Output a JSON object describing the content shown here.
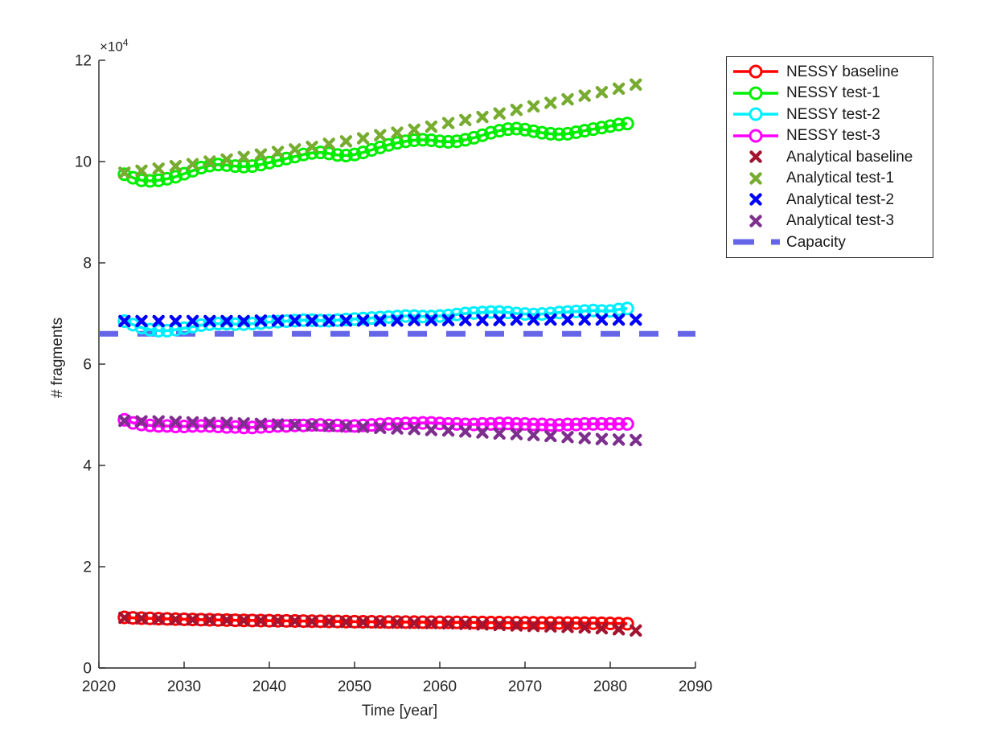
{
  "figure_bg": "#ffffff",
  "axis_color": "#252525",
  "chart_data": {
    "type": "line",
    "title": "",
    "xlabel": "Time [year]",
    "ylabel": "# fragments",
    "y_multiplier_label": "×10",
    "y_multiplier_exponent": "4",
    "value_scale": 10000,
    "xlim": [
      2020,
      2090
    ],
    "ylim_in_1e4": [
      0,
      12
    ],
    "x_ticks": [
      2020,
      2030,
      2040,
      2050,
      2060,
      2070,
      2080,
      2090
    ],
    "y_ticks": [
      0,
      2,
      4,
      6,
      8,
      10,
      12
    ],
    "grid": false,
    "legend_position": "outside top-right",
    "series": [
      {
        "name": "NESSY baseline",
        "style": "line-circle",
        "color": "#FF0000",
        "x": [
          2023,
          2024,
          2025,
          2026,
          2027,
          2028,
          2029,
          2030,
          2031,
          2032,
          2033,
          2034,
          2035,
          2036,
          2037,
          2038,
          2039,
          2040,
          2041,
          2042,
          2043,
          2044,
          2045,
          2046,
          2047,
          2048,
          2049,
          2050,
          2051,
          2052,
          2053,
          2054,
          2055,
          2056,
          2057,
          2058,
          2059,
          2060,
          2061,
          2062,
          2063,
          2064,
          2065,
          2066,
          2067,
          2068,
          2069,
          2070,
          2071,
          2072,
          2073,
          2074,
          2075,
          2076,
          2077,
          2078,
          2079,
          2080,
          2081,
          2082
        ],
        "y": [
          1.0,
          0.99,
          0.985,
          0.98,
          0.975,
          0.97,
          0.966,
          0.962,
          0.958,
          0.955,
          0.952,
          0.949,
          0.946,
          0.943,
          0.94,
          0.938,
          0.936,
          0.934,
          0.932,
          0.93,
          0.928,
          0.926,
          0.924,
          0.922,
          0.92,
          0.918,
          0.916,
          0.915,
          0.913,
          0.912,
          0.91,
          0.909,
          0.908,
          0.907,
          0.906,
          0.905,
          0.904,
          0.903,
          0.902,
          0.901,
          0.9,
          0.899,
          0.898,
          0.897,
          0.896,
          0.895,
          0.894,
          0.893,
          0.892,
          0.891,
          0.89,
          0.889,
          0.888,
          0.887,
          0.886,
          0.884,
          0.882,
          0.88,
          0.877,
          0.874
        ]
      },
      {
        "name": "NESSY test-1",
        "style": "line-circle",
        "color": "#00EE00",
        "x": [
          2023,
          2024,
          2025,
          2026,
          2027,
          2028,
          2029,
          2030,
          2031,
          2032,
          2033,
          2034,
          2035,
          2036,
          2037,
          2038,
          2039,
          2040,
          2041,
          2042,
          2043,
          2044,
          2045,
          2046,
          2047,
          2048,
          2049,
          2050,
          2051,
          2052,
          2053,
          2054,
          2055,
          2056,
          2057,
          2058,
          2059,
          2060,
          2061,
          2062,
          2063,
          2064,
          2065,
          2066,
          2067,
          2068,
          2069,
          2070,
          2071,
          2072,
          2073,
          2074,
          2075,
          2076,
          2077,
          2078,
          2079,
          2080,
          2081,
          2082
        ],
        "y": [
          9.75,
          9.68,
          9.63,
          9.62,
          9.63,
          9.66,
          9.7,
          9.76,
          9.82,
          9.88,
          9.92,
          9.94,
          9.93,
          9.91,
          9.9,
          9.91,
          9.94,
          9.98,
          10.02,
          10.06,
          10.1,
          10.14,
          10.17,
          10.18,
          10.16,
          10.13,
          10.12,
          10.14,
          10.18,
          10.23,
          10.28,
          10.33,
          10.37,
          10.4,
          10.42,
          10.43,
          10.42,
          10.4,
          10.39,
          10.4,
          10.43,
          10.47,
          10.52,
          10.57,
          10.61,
          10.64,
          10.65,
          10.63,
          10.6,
          10.57,
          10.55,
          10.54,
          10.55,
          10.58,
          10.61,
          10.64,
          10.67,
          10.7,
          10.73,
          10.75
        ]
      },
      {
        "name": "NESSY test-2",
        "style": "line-circle",
        "color": "#00EFFF",
        "x": [
          2023,
          2024,
          2025,
          2026,
          2027,
          2028,
          2029,
          2030,
          2031,
          2032,
          2033,
          2034,
          2035,
          2036,
          2037,
          2038,
          2039,
          2040,
          2041,
          2042,
          2043,
          2044,
          2045,
          2046,
          2047,
          2048,
          2049,
          2050,
          2051,
          2052,
          2053,
          2054,
          2055,
          2056,
          2057,
          2058,
          2059,
          2060,
          2061,
          2062,
          2063,
          2064,
          2065,
          2066,
          2067,
          2068,
          2069,
          2070,
          2071,
          2072,
          2073,
          2074,
          2075,
          2076,
          2077,
          2078,
          2079,
          2080,
          2081,
          2082
        ],
        "y": [
          6.85,
          6.78,
          6.72,
          6.68,
          6.66,
          6.66,
          6.68,
          6.71,
          6.74,
          6.77,
          6.79,
          6.8,
          6.8,
          6.79,
          6.79,
          6.8,
          6.81,
          6.83,
          6.84,
          6.85,
          6.86,
          6.87,
          6.87,
          6.86,
          6.86,
          6.87,
          6.88,
          6.89,
          6.9,
          6.91,
          6.92,
          6.93,
          6.94,
          6.95,
          6.95,
          6.94,
          6.94,
          6.95,
          6.96,
          6.98,
          7.0,
          7.01,
          7.02,
          7.03,
          7.03,
          7.02,
          7.0,
          6.99,
          6.98,
          6.99,
          7.0,
          7.02,
          7.03,
          7.04,
          7.05,
          7.06,
          7.05,
          7.05,
          7.08,
          7.1
        ]
      },
      {
        "name": "NESSY test-3",
        "style": "line-circle",
        "color": "#FF00FF",
        "x": [
          2023,
          2024,
          2025,
          2026,
          2027,
          2028,
          2029,
          2030,
          2031,
          2032,
          2033,
          2034,
          2035,
          2036,
          2037,
          2038,
          2039,
          2040,
          2041,
          2042,
          2043,
          2044,
          2045,
          2046,
          2047,
          2048,
          2049,
          2050,
          2051,
          2052,
          2053,
          2054,
          2055,
          2056,
          2057,
          2058,
          2059,
          2060,
          2061,
          2062,
          2063,
          2064,
          2065,
          2066,
          2067,
          2068,
          2069,
          2070,
          2071,
          2072,
          2073,
          2074,
          2075,
          2076,
          2077,
          2078,
          2079,
          2080,
          2081,
          2082
        ],
        "y": [
          4.9,
          4.84,
          4.81,
          4.79,
          4.78,
          4.78,
          4.77,
          4.77,
          4.78,
          4.78,
          4.78,
          4.77,
          4.76,
          4.76,
          4.75,
          4.75,
          4.76,
          4.77,
          4.78,
          4.78,
          4.79,
          4.79,
          4.8,
          4.8,
          4.79,
          4.79,
          4.78,
          4.78,
          4.79,
          4.8,
          4.81,
          4.82,
          4.82,
          4.83,
          4.83,
          4.84,
          4.84,
          4.83,
          4.82,
          4.82,
          4.81,
          4.81,
          4.82,
          4.82,
          4.83,
          4.83,
          4.82,
          4.82,
          4.81,
          4.81,
          4.8,
          4.8,
          4.81,
          4.81,
          4.82,
          4.82,
          4.82,
          4.82,
          4.82,
          4.82
        ]
      },
      {
        "name": "Analytical baseline",
        "style": "x",
        "color": "#A2142F",
        "x": [
          2023,
          2025,
          2027,
          2029,
          2031,
          2033,
          2035,
          2037,
          2039,
          2041,
          2043,
          2045,
          2047,
          2049,
          2051,
          2053,
          2055,
          2057,
          2059,
          2061,
          2063,
          2065,
          2067,
          2069,
          2071,
          2073,
          2075,
          2077,
          2079,
          2081,
          2083
        ],
        "y": [
          0.99,
          0.98,
          0.97,
          0.96,
          0.955,
          0.95,
          0.945,
          0.94,
          0.935,
          0.93,
          0.925,
          0.92,
          0.915,
          0.91,
          0.905,
          0.9,
          0.895,
          0.89,
          0.885,
          0.88,
          0.87,
          0.86,
          0.85,
          0.84,
          0.83,
          0.82,
          0.81,
          0.8,
          0.785,
          0.765,
          0.74
        ]
      },
      {
        "name": "Analytical test-1",
        "style": "x",
        "color": "#77AC30",
        "x": [
          2023,
          2025,
          2027,
          2029,
          2031,
          2033,
          2035,
          2037,
          2039,
          2041,
          2043,
          2045,
          2047,
          2049,
          2051,
          2053,
          2055,
          2057,
          2059,
          2061,
          2063,
          2065,
          2067,
          2069,
          2071,
          2073,
          2075,
          2077,
          2079,
          2081,
          2083
        ],
        "y": [
          9.78,
          9.82,
          9.86,
          9.91,
          9.95,
          10.0,
          10.04,
          10.09,
          10.14,
          10.19,
          10.24,
          10.29,
          10.35,
          10.4,
          10.46,
          10.52,
          10.57,
          10.63,
          10.69,
          10.76,
          10.82,
          10.88,
          10.95,
          11.02,
          11.09,
          11.16,
          11.23,
          11.3,
          11.37,
          11.44,
          11.52
        ]
      },
      {
        "name": "Analytical test-2",
        "style": "x",
        "color": "#0000FF",
        "x": [
          2023,
          2025,
          2027,
          2029,
          2031,
          2033,
          2035,
          2037,
          2039,
          2041,
          2043,
          2045,
          2047,
          2049,
          2051,
          2053,
          2055,
          2057,
          2059,
          2061,
          2063,
          2065,
          2067,
          2069,
          2071,
          2073,
          2075,
          2077,
          2079,
          2081,
          2083
        ],
        "y": [
          6.85,
          6.85,
          6.85,
          6.85,
          6.85,
          6.85,
          6.85,
          6.85,
          6.86,
          6.86,
          6.86,
          6.86,
          6.86,
          6.86,
          6.86,
          6.86,
          6.86,
          6.87,
          6.87,
          6.87,
          6.87,
          6.87,
          6.87,
          6.88,
          6.88,
          6.88,
          6.88,
          6.88,
          6.88,
          6.88,
          6.88
        ]
      },
      {
        "name": "Analytical test-3",
        "style": "x",
        "color": "#7E2F8E",
        "x": [
          2023,
          2025,
          2027,
          2029,
          2031,
          2033,
          2035,
          2037,
          2039,
          2041,
          2043,
          2045,
          2047,
          2049,
          2051,
          2053,
          2055,
          2057,
          2059,
          2061,
          2063,
          2065,
          2067,
          2069,
          2071,
          2073,
          2075,
          2077,
          2079,
          2081,
          2083
        ],
        "y": [
          4.88,
          4.87,
          4.87,
          4.86,
          4.85,
          4.84,
          4.84,
          4.83,
          4.82,
          4.81,
          4.8,
          4.79,
          4.78,
          4.77,
          4.76,
          4.74,
          4.73,
          4.72,
          4.7,
          4.69,
          4.67,
          4.65,
          4.63,
          4.62,
          4.6,
          4.58,
          4.56,
          4.54,
          4.52,
          4.51,
          4.5
        ]
      },
      {
        "name": "Capacity",
        "style": "dashed",
        "color": "#6565E8",
        "x": [
          2020,
          2090
        ],
        "y": [
          6.6,
          6.6
        ]
      }
    ]
  }
}
